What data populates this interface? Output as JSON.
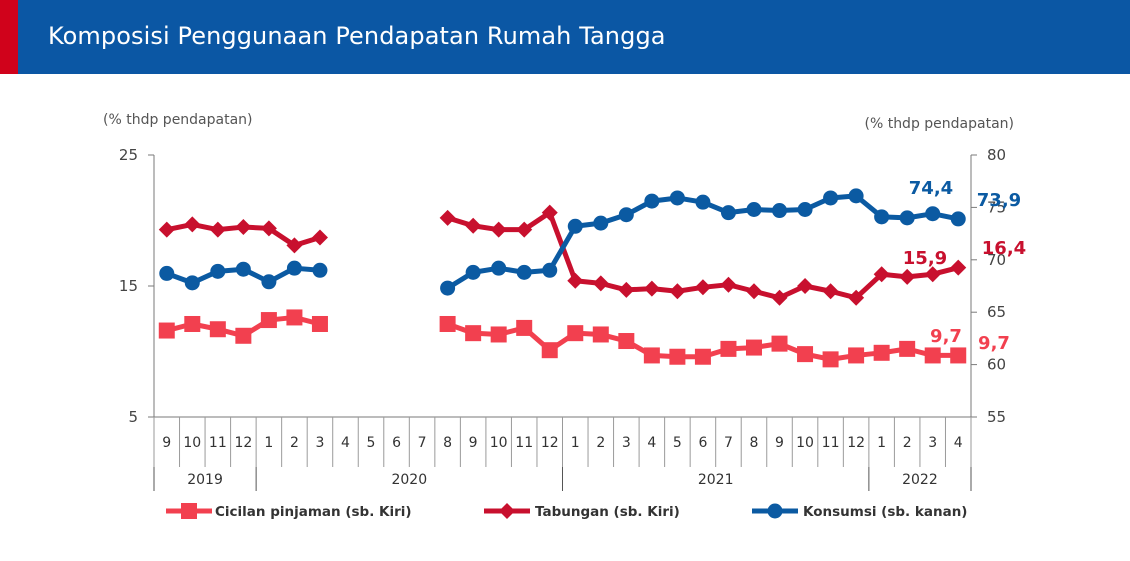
{
  "header": {
    "title": "Komposisi Penggunaan Pendapatan Rumah Tangga"
  },
  "colors": {
    "header_bg": "#0b57a4",
    "header_accent": "#d0021b",
    "cicilan": "#f2404f",
    "tabungan": "#c8102e",
    "konsumsi": "#0b5aa2"
  },
  "chart_data": {
    "type": "line",
    "title": "Komposisi Penggunaan Pendapatan Rumah Tangga",
    "left_unit": "(% thdp pendapatan)",
    "right_unit": "(% thdp pendapatan)",
    "left_axis": {
      "ylim": [
        5,
        25
      ],
      "ticks": [
        5,
        15,
        25
      ],
      "tick_labels": [
        "5",
        "15",
        "25"
      ]
    },
    "right_axis": {
      "ylim": [
        55,
        80
      ],
      "ticks": [
        55,
        60,
        65,
        70,
        75,
        80
      ],
      "tick_labels": [
        "55",
        "60",
        "65",
        "70",
        "75",
        "80"
      ]
    },
    "grid": false,
    "legend_position": "bottom",
    "categories": [
      "9",
      "10",
      "11",
      "12",
      "1",
      "2",
      "3",
      "4",
      "5",
      "6",
      "7",
      "8",
      "9",
      "10",
      "11",
      "12",
      "1",
      "2",
      "3",
      "4",
      "5",
      "6",
      "7",
      "8",
      "9",
      "10",
      "11",
      "12",
      "1",
      "2",
      "3",
      "4"
    ],
    "years": [
      {
        "label": "2019",
        "months": 4
      },
      {
        "label": "2020",
        "months": 12
      },
      {
        "label": "2021",
        "months": 12
      },
      {
        "label": "2022",
        "months": 4
      }
    ],
    "series": [
      {
        "name": "Cicilan pinjaman (sb. Kiri)",
        "axis": "left",
        "color": "#f2404f",
        "marker": "square",
        "values": [
          11.6,
          12.1,
          11.7,
          11.2,
          12.4,
          12.6,
          12.1,
          null,
          null,
          null,
          null,
          12.1,
          11.4,
          11.3,
          11.8,
          10.1,
          11.4,
          11.3,
          10.8,
          9.7,
          9.6,
          9.6,
          10.2,
          10.3,
          10.6,
          9.8,
          9.4,
          9.7,
          9.9,
          10.2,
          9.7,
          9.7
        ]
      },
      {
        "name": "Tabungan (sb. Kiri)",
        "axis": "left",
        "color": "#c8102e",
        "marker": "diamond",
        "values": [
          19.3,
          19.7,
          19.3,
          19.5,
          19.4,
          18.1,
          18.7,
          null,
          null,
          null,
          null,
          20.2,
          19.6,
          19.3,
          19.3,
          20.6,
          15.4,
          15.2,
          14.7,
          14.8,
          14.6,
          14.9,
          15.1,
          14.6,
          14.1,
          15.0,
          14.6,
          14.1,
          15.9,
          15.7,
          15.9,
          16.4
        ]
      },
      {
        "name": "Konsumsi (sb. kanan)",
        "axis": "right",
        "color": "#0b5aa2",
        "marker": "circle",
        "values": [
          68.7,
          67.8,
          68.9,
          69.1,
          67.9,
          69.2,
          69.0,
          null,
          null,
          null,
          null,
          67.3,
          68.8,
          69.2,
          68.8,
          69.0,
          73.2,
          73.5,
          74.3,
          75.6,
          75.9,
          75.5,
          74.5,
          74.8,
          74.7,
          74.8,
          75.9,
          76.1,
          74.1,
          74.0,
          74.4,
          73.9
        ]
      }
    ],
    "annotations": [
      {
        "series": "Konsumsi (sb. kanan)",
        "label_a": "74,4",
        "label_b": "73,9"
      },
      {
        "series": "Tabungan (sb. Kiri)",
        "label_a": "15,9",
        "label_b": "16,4"
      },
      {
        "series": "Cicilan pinjaman (sb. Kiri)",
        "label_a": "9,7",
        "label_b": "9,7"
      }
    ]
  }
}
